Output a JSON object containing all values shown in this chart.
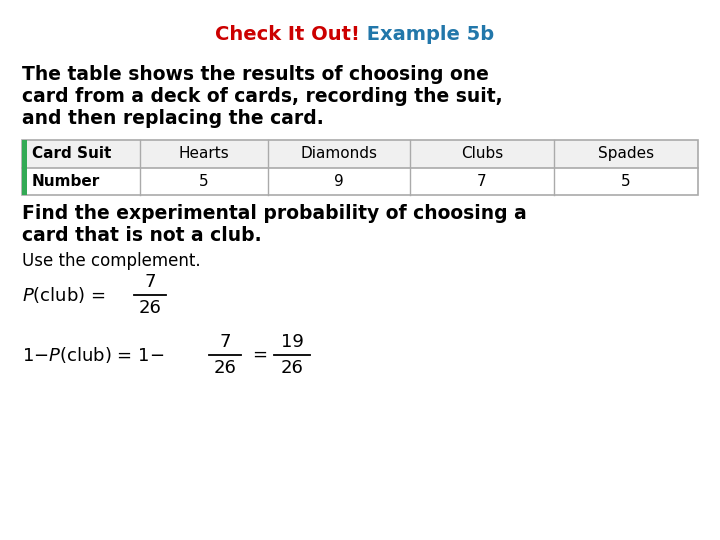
{
  "title_check": "Check It Out!",
  "title_example": " Example 5b",
  "title_check_color": "#cc0000",
  "title_example_color": "#2277aa",
  "body_text1_line1": "The table shows the results of choosing one",
  "body_text1_line2": "card from a deck of cards, recording the suit,",
  "body_text1_line3": "and then replacing the card.",
  "table_headers": [
    "Card Suit",
    "Hearts",
    "Diamonds",
    "Clubs",
    "Spades"
  ],
  "table_values": [
    "Number",
    "5",
    "9",
    "7",
    "5"
  ],
  "find_text_line1": "Find the experimental probability of choosing a",
  "find_text_line2": "card that is not a club.",
  "use_text": "Use the complement.",
  "bg_color": "#ffffff",
  "green_bar_color": "#33aa55",
  "table_border_color": "#aaaaaa"
}
